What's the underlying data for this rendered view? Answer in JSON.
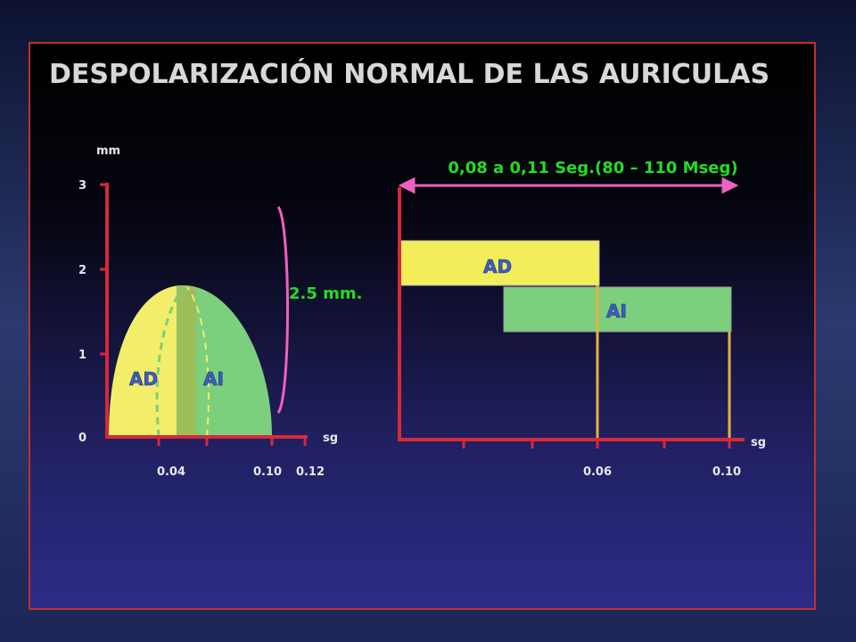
{
  "title": "DESPOLARIZACIÓN NORMAL DE LAS AURICULAS",
  "left_graph": {
    "y_unit": "mm",
    "y_ticks": [
      "3",
      "2",
      "1",
      "0"
    ],
    "x_unit": "sg",
    "x_ticks": [
      "0.04",
      "0.10",
      "0.12"
    ],
    "labels": [
      "AD",
      "AI"
    ]
  },
  "amplitude_note": "2.5 mm.",
  "duration_note": "0,08 a 0,11 Seg.(80 – 110 Mseg)",
  "right_graph": {
    "bars": [
      "AD",
      "AI"
    ],
    "x_unit": "sg",
    "x_ticks": [
      "0.06",
      "0.10"
    ]
  }
}
